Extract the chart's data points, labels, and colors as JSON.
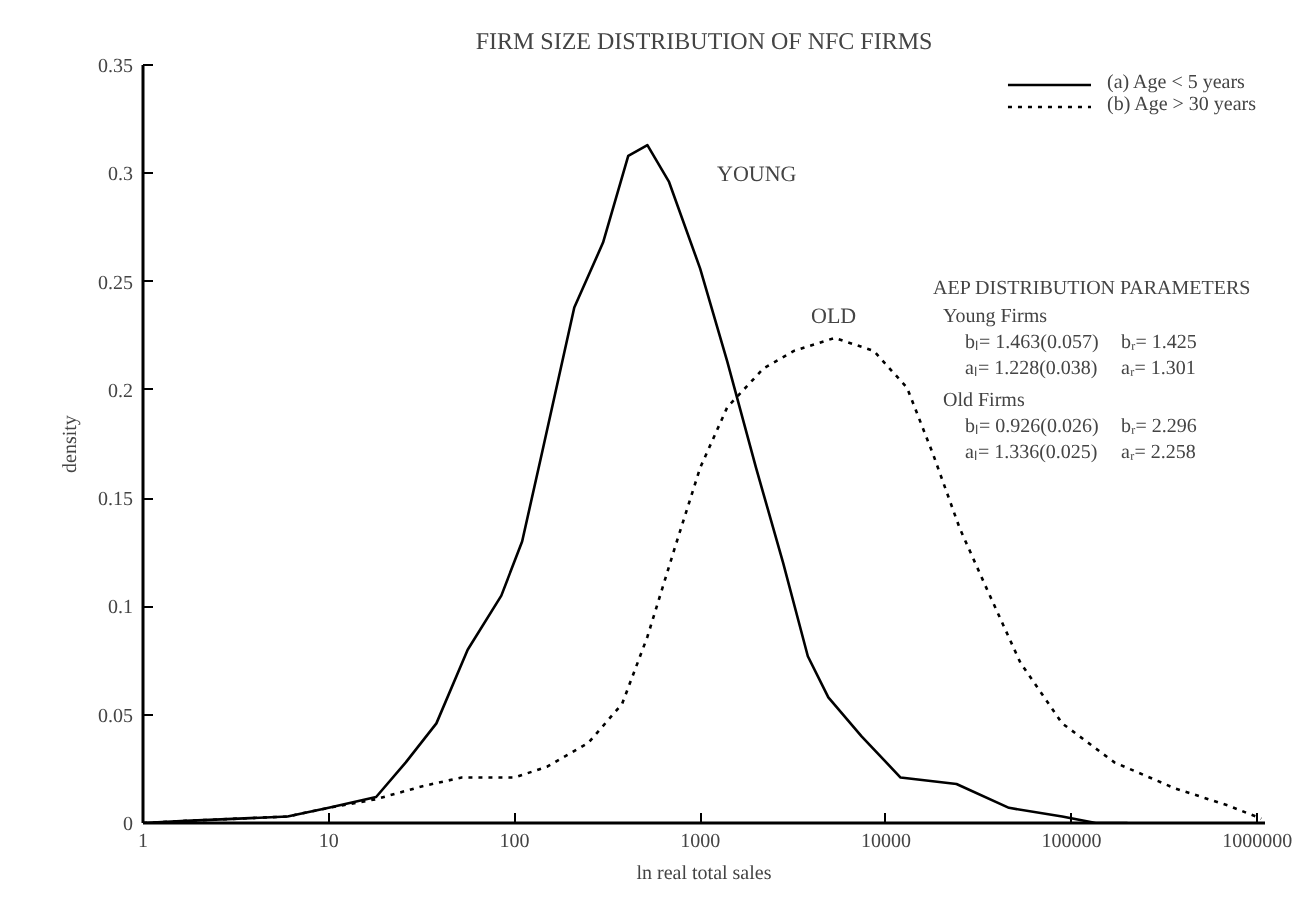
{
  "chart_data": {
    "type": "line",
    "title": "FIRM SIZE DISTRIBUTION OF NFC FIRMS",
    "xlabel": "ln real total sales",
    "ylabel": "density",
    "log": "x",
    "xlim": [
      1,
      1100000
    ],
    "ylim": [
      0,
      0.35
    ],
    "xticks": [
      1,
      10,
      100,
      1000,
      10000,
      100000,
      1000000
    ],
    "yticks": [
      0,
      0.05,
      0.1,
      0.15,
      0.2,
      0.25,
      0.3,
      0.35
    ],
    "grid": false,
    "legend": "top right",
    "marker": "none",
    "series": [
      {
        "name": "(a) Age < 5 years",
        "color": "#000000",
        "line_style": "solid",
        "x": [
          1,
          1.7,
          6,
          10,
          18,
          26,
          38,
          56,
          85,
          110,
          140,
          210,
          300,
          410,
          520,
          680,
          1000,
          1400,
          2000,
          2800,
          3800,
          4900,
          7400,
          12000,
          24000,
          46000,
          89000,
          135000,
          200000
        ],
        "values": [
          0,
          0.001,
          0.003,
          0.007,
          0.012,
          0.028,
          0.046,
          0.08,
          0.105,
          0.13,
          0.17,
          0.238,
          0.268,
          0.308,
          0.313,
          0.296,
          0.256,
          0.213,
          0.164,
          0.12,
          0.077,
          0.058,
          0.04,
          0.021,
          0.018,
          0.007,
          0.003,
          0,
          0
        ]
      },
      {
        "name": "(b) Age > 30 years",
        "color": "#000000",
        "line_style": "dotted",
        "x": [
          1,
          1.7,
          6,
          10,
          18,
          32,
          52,
          100,
          150,
          250,
          380,
          520,
          730,
          1000,
          1400,
          2200,
          3200,
          5300,
          8600,
          13000,
          18000,
          25000,
          35000,
          53000,
          89000,
          170000,
          360000,
          700000,
          1050000
        ],
        "values": [
          0,
          0.001,
          0.003,
          0.007,
          0.011,
          0.017,
          0.021,
          0.021,
          0.026,
          0.037,
          0.055,
          0.086,
          0.127,
          0.164,
          0.192,
          0.21,
          0.218,
          0.224,
          0.218,
          0.201,
          0.17,
          0.136,
          0.108,
          0.074,
          0.046,
          0.028,
          0.016,
          0.008,
          0.002
        ]
      }
    ],
    "annotations": [
      "YOUNG",
      "OLD",
      "AEP DISTRIBUTION PARAMETERS",
      "Young Firms",
      "bₗ= 1.463(0.057)",
      "bᵣ= 1.425",
      "aₗ= 1.228(0.038)",
      "aᵣ= 1.301",
      "Old Firms",
      "bₗ= 0.926(0.026)",
      "bᵣ= 2.296",
      "aₗ= 1.336(0.025)",
      "aᵣ= 2.258"
    ]
  }
}
